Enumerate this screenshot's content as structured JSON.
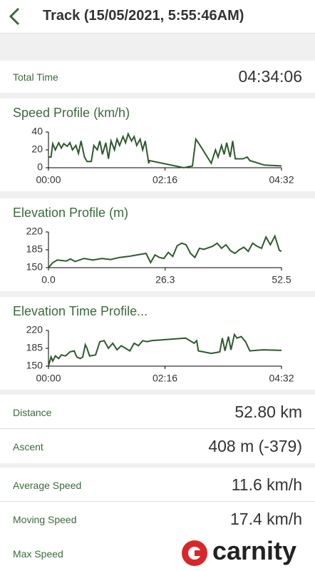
{
  "header": {
    "title": "Track (15/05/2021, 5:55:46AM)"
  },
  "total_time": {
    "label": "Total Time",
    "value": "04:34:06"
  },
  "chart_data": [
    {
      "type": "line",
      "title": "Speed Profile (km/h)",
      "color": "#2f5a2f",
      "x": [
        0,
        3,
        5,
        8,
        12,
        15,
        18,
        22,
        25,
        28,
        32,
        35,
        38,
        42,
        45,
        50,
        53,
        57,
        60,
        63,
        67,
        70,
        73,
        77,
        80,
        83,
        87,
        90,
        93,
        97,
        100,
        103,
        107,
        110,
        113,
        117,
        118,
        158,
        168,
        172,
        177,
        190,
        195,
        198,
        202,
        205,
        208,
        212,
        215,
        218,
        227,
        232,
        235,
        252,
        272
      ],
      "values": [
        12,
        12,
        27,
        20,
        28,
        22,
        27,
        24,
        28,
        20,
        25,
        16,
        30,
        12,
        7,
        7,
        25,
        20,
        30,
        15,
        28,
        10,
        30,
        20,
        32,
        25,
        35,
        28,
        38,
        30,
        35,
        25,
        32,
        20,
        30,
        5,
        8,
        0,
        2,
        32,
        25,
        5,
        20,
        12,
        25,
        15,
        28,
        12,
        30,
        10,
        10,
        12,
        8,
        3,
        2
      ],
      "xlim": [
        0,
        272
      ],
      "xticks": [
        {
          "value": 0,
          "label": "00:00"
        },
        {
          "value": 136,
          "label": "02:16"
        },
        {
          "value": 272,
          "label": "04:32"
        }
      ],
      "ylim": [
        0,
        40
      ],
      "yticks": [
        0,
        20,
        40
      ]
    },
    {
      "type": "line",
      "title": "Elevation Profile (m)",
      "color": "#2f5a2f",
      "x": [
        0,
        1,
        2,
        4,
        5,
        6,
        8,
        10,
        12,
        14,
        16,
        18,
        20,
        22,
        23,
        24,
        25,
        26,
        27,
        28,
        29,
        30,
        31,
        32,
        33,
        34,
        35,
        37,
        38,
        39,
        40,
        41,
        42,
        43,
        44,
        45,
        46,
        47,
        48,
        49,
        50,
        51,
        52,
        52.5
      ],
      "values": [
        150,
        160,
        165,
        163,
        167,
        162,
        168,
        165,
        168,
        166,
        170,
        172,
        175,
        178,
        160,
        175,
        170,
        168,
        180,
        172,
        193,
        198,
        195,
        178,
        170,
        188,
        186,
        192,
        198,
        188,
        195,
        183,
        178,
        185,
        190,
        182,
        198,
        192,
        188,
        210,
        195,
        212,
        184,
        182
      ],
      "xlim": [
        0,
        52.5
      ],
      "xticks": [
        {
          "value": 0,
          "label": "0.0"
        },
        26.3,
        52.5
      ],
      "ylim": [
        150,
        220
      ],
      "yticks": [
        150,
        185,
        220
      ]
    },
    {
      "type": "line",
      "title": "Elevation Time Profile...",
      "color": "#2f5a2f",
      "x": [
        0,
        3,
        5,
        8,
        12,
        15,
        20,
        25,
        30,
        33,
        37,
        40,
        43,
        45,
        48,
        55,
        60,
        65,
        70,
        75,
        80,
        85,
        90,
        95,
        100,
        105,
        110,
        115,
        120,
        160,
        170,
        173,
        175,
        190,
        200,
        203,
        206,
        210,
        213,
        217,
        220,
        225,
        230,
        235,
        250,
        272
      ],
      "values": [
        150,
        168,
        160,
        170,
        165,
        172,
        170,
        178,
        180,
        168,
        165,
        168,
        192,
        185,
        170,
        172,
        198,
        200,
        185,
        195,
        182,
        190,
        185,
        180,
        195,
        190,
        200,
        198,
        200,
        205,
        195,
        200,
        180,
        175,
        178,
        205,
        180,
        208,
        182,
        212,
        205,
        208,
        198,
        180,
        182,
        181
      ],
      "xlim": [
        0,
        272
      ],
      "xticks": [
        {
          "value": 0,
          "label": "00:00"
        },
        {
          "value": 136,
          "label": "02:16"
        },
        {
          "value": 272,
          "label": "04:32"
        }
      ],
      "ylim": [
        150,
        220
      ],
      "yticks": [
        150,
        185,
        220
      ]
    }
  ],
  "stats": [
    {
      "label": "Distance",
      "value": "52.80 km"
    },
    {
      "label": "Ascent",
      "value": "408 m (-379)"
    },
    {
      "label": "Average Speed",
      "value": "11.6 km/h"
    },
    {
      "label": "Moving Speed",
      "value": "17.4 km/h"
    },
    {
      "label": "Max Speed"
    }
  ],
  "watermark": "carnity"
}
